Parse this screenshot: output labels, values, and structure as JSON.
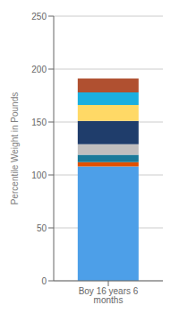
{
  "chart_data": {
    "type": "bar",
    "categories": [
      "Boy 16 years 6 months"
    ],
    "series": [
      {
        "color": "#4D9FE8",
        "values": [
          108
        ]
      },
      {
        "color": "#E05000",
        "values": [
          4
        ]
      },
      {
        "color": "#1A7A9A",
        "values": [
          7
        ]
      },
      {
        "color": "#C0BEBE",
        "values": [
          10
        ]
      },
      {
        "color": "#1F3D6B",
        "values": [
          22
        ]
      },
      {
        "color": "#FFD966",
        "values": [
          15
        ]
      },
      {
        "color": "#1AAFE0",
        "values": [
          12
        ]
      },
      {
        "color": "#B05030",
        "values": [
          13
        ]
      }
    ],
    "stacked": true,
    "ylabel": "Percentile Weight in Pounds",
    "ylim": [
      0,
      250
    ],
    "yticks": [
      0,
      50,
      100,
      150,
      200,
      250
    ],
    "grid": true
  }
}
